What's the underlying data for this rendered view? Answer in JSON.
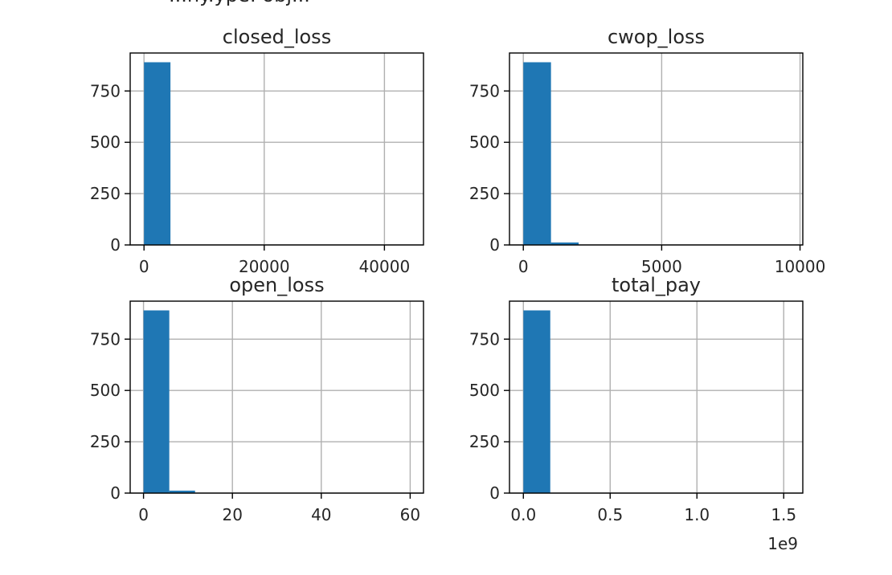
{
  "figure": {
    "header_fragment": "...ny.ype: obj..."
  },
  "chart_data": [
    {
      "type": "bar",
      "title": "closed_loss",
      "xlim": [
        -2300,
        46500
      ],
      "ylim": [
        0,
        935
      ],
      "xticks": [
        0,
        20000,
        40000
      ],
      "xtick_labels": [
        "0",
        "20000",
        "40000"
      ],
      "yticks": [
        0,
        250,
        500,
        750
      ],
      "ytick_labels": [
        "0",
        "250",
        "500",
        "750"
      ],
      "grid": true,
      "bin_edges": [
        0,
        4400,
        8800,
        13200,
        17600,
        22000,
        26400,
        30800,
        35200,
        39600,
        44000
      ],
      "values": [
        890,
        0,
        0,
        0,
        0,
        0,
        0,
        0,
        0,
        0
      ],
      "x_offset_label": ""
    },
    {
      "type": "bar",
      "title": "cwop_loss",
      "xlim": [
        -500,
        10100
      ],
      "ylim": [
        0,
        935
      ],
      "xticks": [
        0,
        5000,
        10000
      ],
      "xtick_labels": [
        "0",
        "5000",
        "10000"
      ],
      "yticks": [
        0,
        250,
        500,
        750
      ],
      "ytick_labels": [
        "0",
        "250",
        "500",
        "750"
      ],
      "grid": true,
      "bin_edges": [
        0,
        1000,
        2000,
        3000,
        4000,
        5000,
        6000,
        7000,
        8000,
        9000,
        10000
      ],
      "values": [
        890,
        12,
        0,
        0,
        0,
        0,
        0,
        0,
        0,
        0
      ],
      "x_offset_label": ""
    },
    {
      "type": "bar",
      "title": "open_loss",
      "xlim": [
        -3,
        63
      ],
      "ylim": [
        0,
        935
      ],
      "xticks": [
        0,
        20,
        40,
        60
      ],
      "xtick_labels": [
        "0",
        "20",
        "40",
        "60"
      ],
      "yticks": [
        0,
        250,
        500,
        750
      ],
      "ytick_labels": [
        "0",
        "250",
        "500",
        "750"
      ],
      "grid": true,
      "bin_edges": [
        0,
        5.8,
        11.6,
        17.4,
        23.2,
        29,
        34.8,
        40.6,
        46.4,
        52.2,
        58
      ],
      "values": [
        890,
        12,
        0,
        0,
        0,
        0,
        0,
        0,
        0,
        0
      ],
      "x_offset_label": ""
    },
    {
      "type": "bar",
      "title": "total_pay",
      "xlim": [
        -0.08,
        1.61
      ],
      "ylim": [
        0,
        935
      ],
      "xticks": [
        0.0,
        0.5,
        1.0,
        1.5
      ],
      "xtick_labels": [
        "0.0",
        "0.5",
        "1.0",
        "1.5"
      ],
      "yticks": [
        0,
        250,
        500,
        750
      ],
      "ytick_labels": [
        "0",
        "250",
        "500",
        "750"
      ],
      "grid": true,
      "bin_edges": [
        0,
        0.155,
        0.31,
        0.465,
        0.62,
        0.775,
        0.93,
        1.085,
        1.24,
        1.395,
        1.55
      ],
      "values": [
        890,
        0,
        0,
        0,
        0,
        0,
        0,
        0,
        0,
        0
      ],
      "x_offset_label": "1e9"
    }
  ],
  "colors": {
    "bar": "#1f77b4",
    "grid": "#b0b0b0",
    "spine": "#000000",
    "text": "#262626"
  }
}
